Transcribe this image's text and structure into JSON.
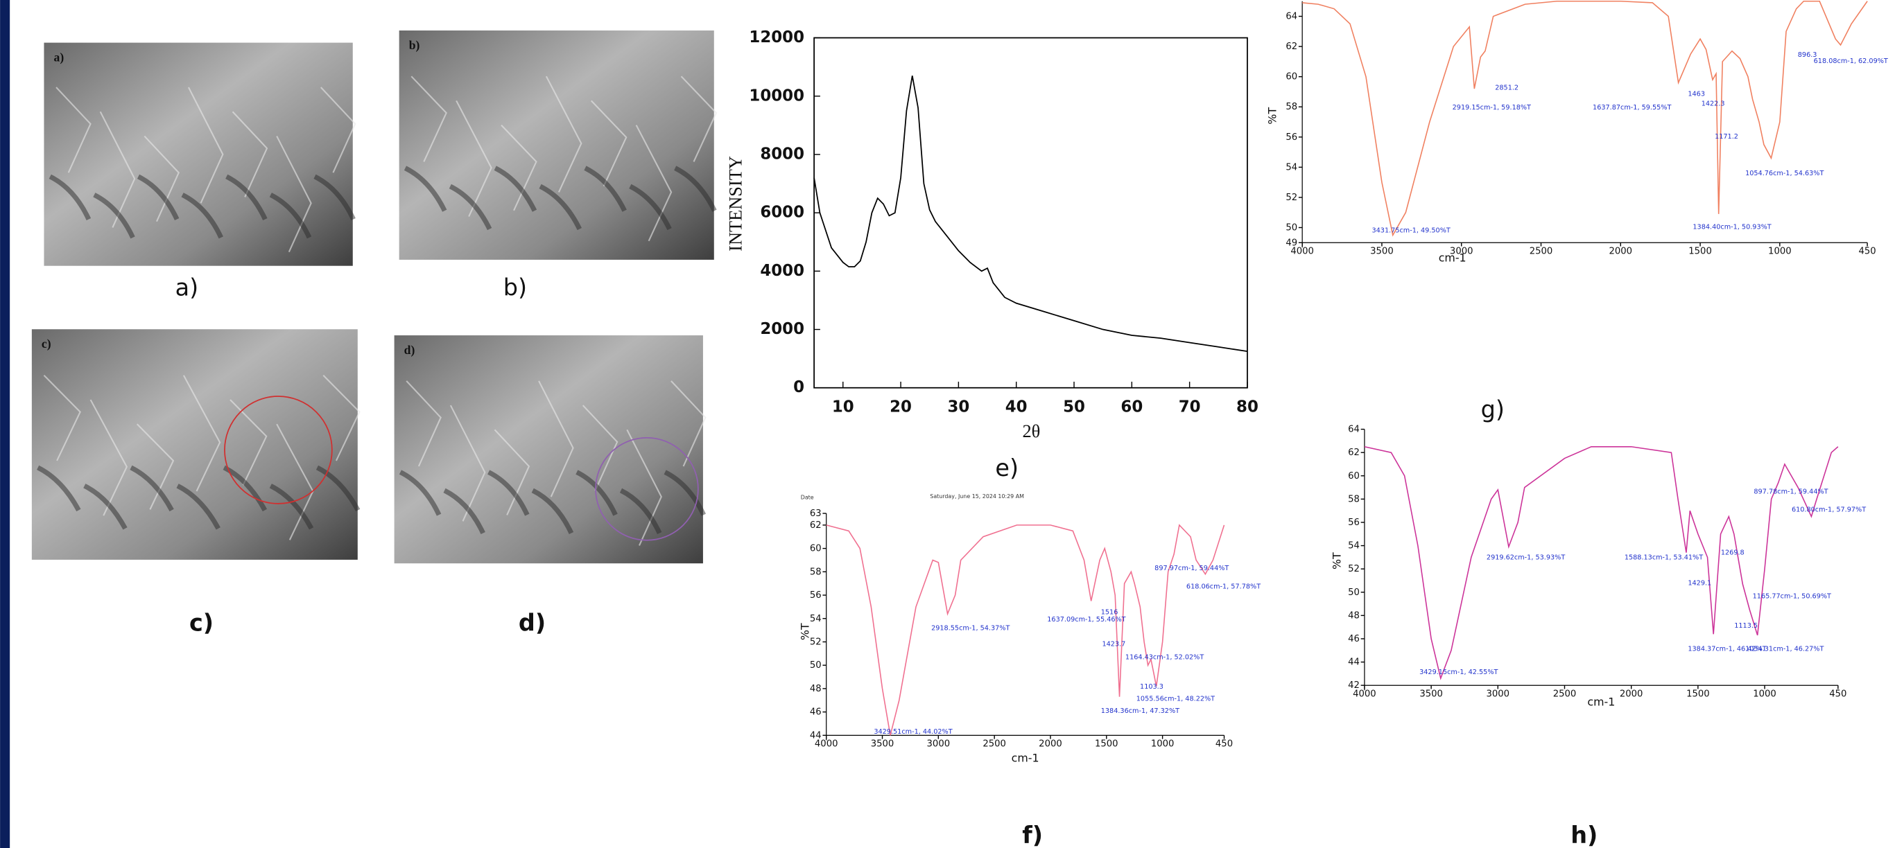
{
  "images": [
    {
      "label": "a)",
      "inset": "a)"
    },
    {
      "label": "b)",
      "inset": "b)"
    },
    {
      "label": "c)",
      "inset": "c)"
    },
    {
      "label": "d)",
      "inset": "d)"
    }
  ],
  "chart_data": [
    {
      "type": "line",
      "panel_label": "e)",
      "xlabel": "2θ",
      "ylabel": "INTENSITY",
      "color": "#000000",
      "x": [
        5,
        6,
        8,
        10,
        11,
        12,
        13,
        14,
        15,
        16,
        17,
        18,
        19,
        20,
        21,
        22,
        23,
        24,
        25,
        26,
        28,
        30,
        32,
        34,
        35,
        36,
        38,
        40,
        45,
        50,
        55,
        60,
        65,
        70,
        75,
        80
      ],
      "values": [
        7200,
        6000,
        4800,
        4300,
        4150,
        4150,
        4350,
        5000,
        6000,
        6500,
        6300,
        5900,
        6000,
        7200,
        9500,
        10700,
        9600,
        7000,
        6100,
        5700,
        5200,
        4700,
        4300,
        4000,
        4100,
        3600,
        3100,
        2900,
        2600,
        2300,
        2000,
        1800,
        1700,
        1550,
        1400,
        1250
      ],
      "xlim": [
        5,
        80
      ],
      "xticks": [
        10,
        20,
        30,
        40,
        50,
        60,
        70,
        80
      ],
      "ylim": [
        0,
        12000
      ],
      "yticks": [
        0,
        2000,
        4000,
        6000,
        8000,
        10000,
        12000
      ]
    },
    {
      "type": "line",
      "panel_label": "g)",
      "xlabel": "cm-1",
      "ylabel": "%T",
      "color": "#f08060",
      "x": [
        4000,
        3900,
        3800,
        3700,
        3600,
        3500,
        3431,
        3350,
        3200,
        3050,
        2950,
        2919,
        2880,
        2851,
        2800,
        2600,
        2400,
        2000,
        1800,
        1700,
        1637,
        1560,
        1500,
        1463,
        1422,
        1400,
        1384,
        1360,
        1300,
        1250,
        1200,
        1171,
        1130,
        1100,
        1054,
        1000,
        960,
        896,
        850,
        750,
        650,
        618,
        550,
        450
      ],
      "values": [
        64.9,
        64.8,
        64.5,
        63.5,
        60,
        53,
        49.5,
        51,
        57,
        62,
        63.3,
        59.2,
        61.3,
        61.7,
        64,
        64.8,
        65,
        65,
        64.9,
        64,
        59.6,
        61.5,
        62.5,
        61.8,
        59.8,
        60.2,
        50.9,
        61,
        61.7,
        61.2,
        60,
        58.5,
        57,
        55.5,
        54.6,
        57,
        63,
        64.5,
        65,
        65,
        62.5,
        62.1,
        63.5,
        65
      ],
      "xlim": [
        4000,
        450
      ],
      "xticks": [
        4000,
        3500,
        3000,
        2500,
        2000,
        1500,
        1000,
        450
      ],
      "ylim": [
        49,
        65
      ],
      "yticks": [
        49,
        50,
        52,
        54,
        56,
        58,
        60,
        62,
        64
      ],
      "annotations": [
        "2919.15cm-1, 59.18%T",
        "2851.2",
        "1637.87cm-1, 59.55%T",
        "1463",
        "1422.3",
        "1171.2",
        "1054.76cm-1, 54.63%T",
        "1384.40cm-1, 50.93%T",
        "3431.75cm-1, 49.50%T",
        "896.3",
        "618.08cm-1, 62.09%T"
      ]
    },
    {
      "type": "line",
      "panel_label": "f)",
      "xlabel": "cm-1",
      "ylabel": "%T",
      "color": "#f07090",
      "header": [
        "Date",
        "Saturday, June 15, 2024 10:29 AM"
      ],
      "x": [
        4000,
        3800,
        3700,
        3600,
        3500,
        3429,
        3350,
        3200,
        3050,
        3000,
        2918,
        2850,
        2800,
        2600,
        2300,
        2000,
        1800,
        1700,
        1637,
        1560,
        1516,
        1460,
        1423,
        1384,
        1340,
        1280,
        1250,
        1200,
        1164,
        1130,
        1103,
        1055,
        1000,
        950,
        898,
        850,
        750,
        700,
        618,
        550,
        450
      ],
      "values": [
        62,
        61.5,
        60,
        55,
        48,
        44,
        47,
        55,
        59,
        58.8,
        54.4,
        56,
        59,
        61,
        62,
        62,
        61.5,
        59,
        55.5,
        59,
        60,
        58,
        56,
        47.3,
        57,
        58,
        57,
        55,
        52,
        50,
        50.5,
        48.2,
        52,
        58,
        59.5,
        62,
        61,
        59,
        57.8,
        59,
        62
      ],
      "xlim": [
        4000,
        450
      ],
      "xticks": [
        4000,
        3500,
        3000,
        2500,
        2000,
        1500,
        1000,
        450
      ],
      "ylim": [
        44,
        63
      ],
      "yticks": [
        44,
        46,
        48,
        50,
        52,
        54,
        56,
        58,
        60,
        62,
        63
      ],
      "annotations": [
        "897.97cm-1, 59.44%T",
        "618.06cm-1, 57.78%T",
        "2918.55cm-1, 54.37%T",
        "1637.09cm-1, 55.46%T",
        "1516",
        "1423.7",
        "1164.43cm-1, 52.02%T",
        "1103.3",
        "1055.56cm-1, 48.22%T",
        "1384.36cm-1, 47.32%T",
        "3429.51cm-1, 44.02%T"
      ]
    },
    {
      "type": "line",
      "panel_label": "h)",
      "xlabel": "cm-1",
      "ylabel": "%T",
      "color": "#cc3399",
      "x": [
        4000,
        3800,
        3700,
        3600,
        3500,
        3429,
        3350,
        3200,
        3050,
        3000,
        2919,
        2850,
        2800,
        2500,
        2300,
        2000,
        1700,
        1650,
        1588,
        1560,
        1500,
        1429,
        1384,
        1330,
        1269,
        1230,
        1165,
        1113,
        1054,
        1000,
        950,
        898,
        850,
        750,
        650,
        610,
        500,
        450
      ],
      "values": [
        62.5,
        62,
        60,
        54,
        46,
        42.6,
        45,
        53,
        58,
        58.8,
        53.9,
        56,
        59,
        61.5,
        62.5,
        62.5,
        62,
        58,
        53.4,
        57,
        55,
        53,
        46.4,
        55,
        56.5,
        55,
        50.7,
        48.5,
        46.3,
        52,
        58,
        59.4,
        61,
        59,
        56.5,
        58,
        62,
        62.5
      ],
      "xlim": [
        4000,
        450
      ],
      "xticks": [
        4000,
        3500,
        3000,
        2500,
        2000,
        1500,
        1000,
        450
      ],
      "ylim": [
        42,
        64
      ],
      "yticks": [
        42,
        44,
        46,
        48,
        50,
        52,
        54,
        56,
        58,
        60,
        62,
        64
      ],
      "annotations": [
        "897.78cm-1, 59.44%T",
        "610.80cm-1, 57.97%T",
        "2919.62cm-1, 53.93%T",
        "1588.13cm-1, 53.41%T",
        "1269.8",
        "1429.1",
        "1165.77cm-1, 50.69%T",
        "1113.5",
        "1384.37cm-1, 46.42%T",
        "1054.31cm-1, 46.27%T",
        "3429.15cm-1, 42.55%T"
      ]
    }
  ]
}
